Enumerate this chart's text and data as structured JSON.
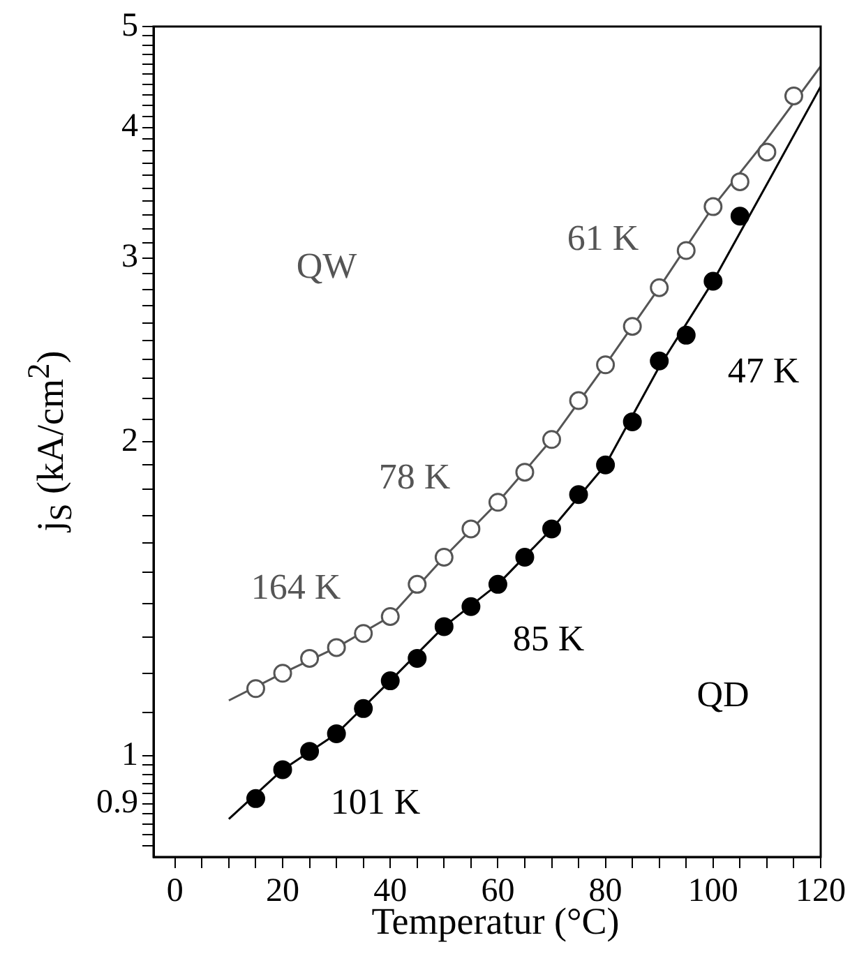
{
  "chart_data": {
    "type": "scatter",
    "xlabel": "Temperatur (°C)",
    "ylabel": "j$_{S}$  (kA/cm$^{2}$)",
    "log": "y",
    "grid": false,
    "legend": false,
    "marker": "circle",
    "xlim": [
      -4,
      120
    ],
    "xticks": [
      0,
      {
        "value": 5,
        "label": null
      },
      {
        "value": 10,
        "label": null
      },
      {
        "value": 15,
        "label": null
      },
      20,
      {
        "value": 25,
        "label": null
      },
      {
        "value": 30,
        "label": null
      },
      {
        "value": 35,
        "label": null
      },
      40,
      {
        "value": 45,
        "label": null
      },
      {
        "value": 50,
        "label": null
      },
      {
        "value": 55,
        "label": null
      },
      60,
      {
        "value": 65,
        "label": null
      },
      {
        "value": 70,
        "label": null
      },
      {
        "value": 75,
        "label": null
      },
      80,
      {
        "value": 85,
        "label": null
      },
      {
        "value": 90,
        "label": null
      },
      {
        "value": 95,
        "label": null
      },
      100,
      {
        "value": 105,
        "label": null
      },
      {
        "value": 110,
        "label": null
      },
      {
        "value": 115,
        "label": null
      },
      120
    ],
    "ylim": [
      0.8,
      5
    ],
    "yticks": [
      {
        "value": 0.82,
        "label": null
      },
      {
        "value": 0.84,
        "label": null
      },
      {
        "value": 0.86,
        "label": null
      },
      {
        "value": 0.88,
        "label": null
      },
      0.9,
      {
        "value": 0.92,
        "label": null
      },
      {
        "value": 0.94,
        "label": null
      },
      {
        "value": 0.96,
        "label": null
      },
      {
        "value": 0.98,
        "label": null
      },
      1,
      {
        "value": 1.1,
        "label": null
      },
      {
        "value": 1.2,
        "label": null
      },
      {
        "value": 1.3,
        "label": null
      },
      {
        "value": 1.4,
        "label": null
      },
      {
        "value": 1.5,
        "label": null
      },
      {
        "value": 1.6,
        "label": null
      },
      {
        "value": 1.7,
        "label": null
      },
      {
        "value": 1.8,
        "label": null
      },
      {
        "value": 1.9,
        "label": null
      },
      2,
      {
        "value": 2.1,
        "label": null
      },
      {
        "value": 2.2,
        "label": null
      },
      {
        "value": 2.3,
        "label": null
      },
      {
        "value": 2.4,
        "label": null
      },
      {
        "value": 2.5,
        "label": null
      },
      {
        "value": 2.6,
        "label": null
      },
      {
        "value": 2.7,
        "label": null
      },
      {
        "value": 2.8,
        "label": null
      },
      {
        "value": 2.9,
        "label": null
      },
      3,
      {
        "value": 3.1,
        "label": null
      },
      {
        "value": 3.2,
        "label": null
      },
      {
        "value": 3.3,
        "label": null
      },
      {
        "value": 3.4,
        "label": null
      },
      {
        "value": 3.5,
        "label": null
      },
      {
        "value": 3.6,
        "label": null
      },
      {
        "value": 3.7,
        "label": null
      },
      {
        "value": 3.8,
        "label": null
      },
      {
        "value": 3.9,
        "label": null
      },
      4,
      {
        "value": 4.1,
        "label": null
      },
      {
        "value": 4.2,
        "label": null
      },
      {
        "value": 4.3,
        "label": null
      },
      {
        "value": 4.4,
        "label": null
      },
      {
        "value": 4.5,
        "label": null
      },
      {
        "value": 4.6,
        "label": null
      },
      {
        "value": 4.7,
        "label": null
      },
      {
        "value": 4.8,
        "label": null
      },
      {
        "value": 4.9,
        "label": null
      },
      5
    ],
    "series": [
      {
        "type": "line",
        "color": "#555555",
        "marker": "none",
        "x": [
          10,
          20,
          30,
          40,
          50,
          60,
          70,
          80,
          90,
          100,
          110,
          120
        ],
        "values": [
          1.13,
          1.2,
          1.27,
          1.36,
          1.55,
          1.75,
          2.01,
          2.37,
          2.81,
          3.36,
          3.9,
          4.58
        ]
      },
      {
        "type": "line",
        "color": "#000000",
        "marker": "none",
        "x": [
          10,
          20,
          30,
          40,
          50,
          60,
          70,
          80,
          90,
          100,
          110,
          120
        ],
        "values": [
          0.87,
          0.97,
          1.05,
          1.18,
          1.33,
          1.46,
          1.65,
          1.9,
          2.36,
          2.85,
          3.53,
          4.38
        ]
      },
      {
        "type": "scatter",
        "color": "#555555",
        "x": [
          15,
          20,
          25,
          30,
          35,
          40,
          45,
          50,
          55,
          60,
          65,
          70,
          75,
          80,
          85,
          90,
          95,
          100,
          105,
          110,
          115
        ],
        "values": [
          1.16,
          1.2,
          1.24,
          1.27,
          1.31,
          1.36,
          1.46,
          1.55,
          1.65,
          1.75,
          1.87,
          2.01,
          2.19,
          2.37,
          2.58,
          2.81,
          3.05,
          3.36,
          3.55,
          3.79,
          4.29
        ]
      },
      {
        "type": "scatter",
        "color": "#000000",
        "x": [
          15,
          20,
          25,
          30,
          35,
          40,
          45,
          50,
          55,
          60,
          65,
          70,
          75,
          80,
          85,
          90,
          95,
          100,
          105
        ],
        "values": [
          0.91,
          0.97,
          1.01,
          1.05,
          1.11,
          1.18,
          1.24,
          1.33,
          1.39,
          1.46,
          1.55,
          1.65,
          1.78,
          1.9,
          2.09,
          2.39,
          2.53,
          2.85,
          3.29
        ]
      }
    ],
    "annotations": [
      "QW",
      "61 K",
      "78 K",
      "164 K",
      "47 K",
      "85 K",
      "QD",
      "101 K"
    ]
  }
}
